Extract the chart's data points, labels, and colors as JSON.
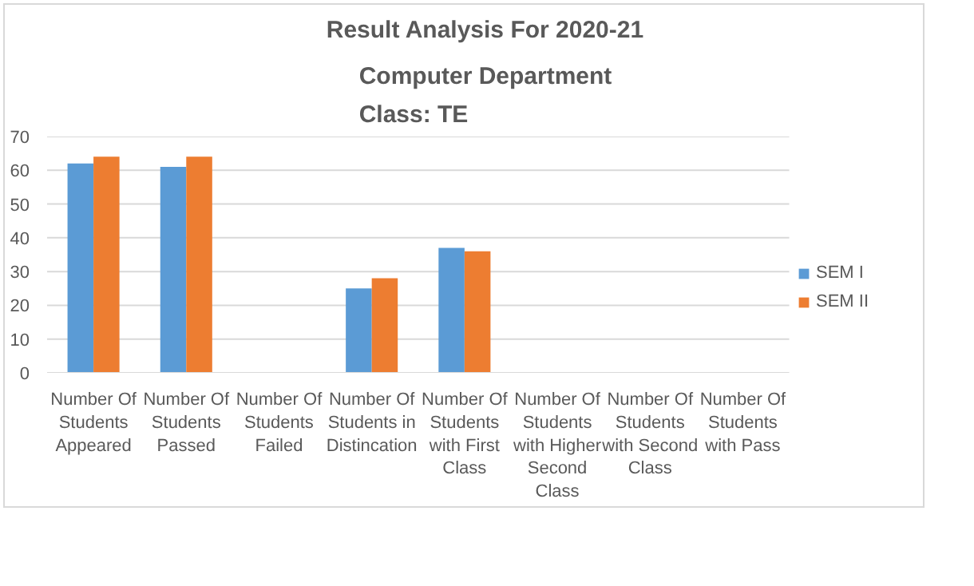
{
  "chart_data": {
    "type": "bar",
    "title": "Result Analysis For 2020-21",
    "subtitle": "Computer Department\nClass: TE",
    "categories": [
      "Number Of Students Appeared",
      "Number Of Students Passed",
      "Number Of Students Failed",
      "Number Of Students in Distincation",
      "Number Of Students with First Class",
      "Number Of Students with Higher Second Class",
      "Number Of Students with Second Class",
      "Number Of Students with Pass"
    ],
    "series": [
      {
        "name": "SEM I",
        "color": "#5b9bd5",
        "values": [
          62,
          61,
          0,
          25,
          37,
          0,
          0,
          0
        ]
      },
      {
        "name": "SEM II",
        "color": "#ed7d31",
        "values": [
          64,
          64,
          0,
          28,
          36,
          0,
          0,
          0
        ]
      }
    ],
    "ylim": [
      0,
      70
    ],
    "yticks": [
      0,
      10,
      20,
      30,
      40,
      50,
      60,
      70
    ],
    "grid": "y",
    "legend": "right"
  }
}
